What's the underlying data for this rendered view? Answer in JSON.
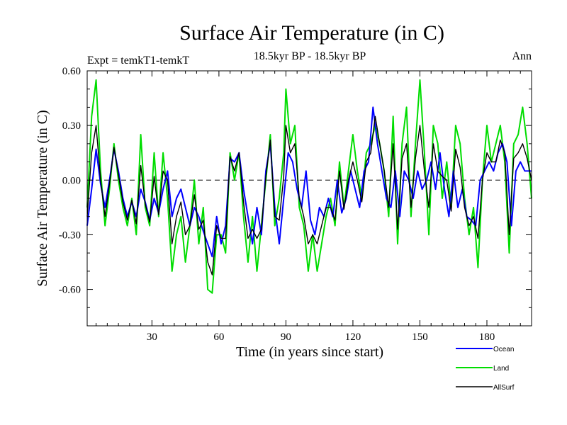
{
  "chart_data": {
    "type": "line",
    "title": "Surface Air Temperature (in C)",
    "subtitle_left": "Expt = temkT1-temkT",
    "subtitle_center": "18.5kyr BP - 18.5kyr BP",
    "subtitle_right": "Ann",
    "xlabel": "Time (in years since start)",
    "ylabel": "Surface Air Temperature (in C)",
    "xlim": [
      1,
      200
    ],
    "ylim": [
      -0.8,
      0.6
    ],
    "x_ticks": [
      30,
      60,
      90,
      120,
      150,
      180
    ],
    "x_tick_labels": [
      "30",
      "60",
      "90",
      "120",
      "150",
      "180"
    ],
    "y_ticks": [
      0.6,
      0.3,
      0.0,
      -0.3,
      -0.6
    ],
    "y_tick_labels": [
      "0.60",
      "0.30",
      "0.00",
      "-0.30",
      "-0.60"
    ],
    "zero_line": "dashed",
    "legend_position": "bottom-right",
    "series": [
      {
        "name": "Ocean",
        "color": "#0000ff",
        "points": [
          [
            1,
            -0.25
          ],
          [
            3,
            -0.05
          ],
          [
            5,
            0.17
          ],
          [
            7,
            -0.02
          ],
          [
            9,
            -0.15
          ],
          [
            11,
            0.0
          ],
          [
            13,
            0.17
          ],
          [
            15,
            0.05
          ],
          [
            17,
            -0.1
          ],
          [
            19,
            -0.2
          ],
          [
            21,
            -0.12
          ],
          [
            23,
            -0.2
          ],
          [
            25,
            -0.05
          ],
          [
            27,
            -0.12
          ],
          [
            29,
            -0.22
          ],
          [
            31,
            -0.1
          ],
          [
            33,
            -0.18
          ],
          [
            35,
            -0.05
          ],
          [
            37,
            0.05
          ],
          [
            39,
            -0.2
          ],
          [
            41,
            -0.1
          ],
          [
            43,
            -0.05
          ],
          [
            45,
            -0.15
          ],
          [
            47,
            -0.25
          ],
          [
            49,
            -0.15
          ],
          [
            51,
            -0.2
          ],
          [
            53,
            -0.28
          ],
          [
            55,
            -0.35
          ],
          [
            57,
            -0.42
          ],
          [
            59,
            -0.2
          ],
          [
            61,
            -0.35
          ],
          [
            63,
            -0.25
          ],
          [
            65,
            0.12
          ],
          [
            67,
            0.1
          ],
          [
            69,
            0.15
          ],
          [
            71,
            -0.05
          ],
          [
            73,
            -0.2
          ],
          [
            75,
            -0.35
          ],
          [
            77,
            -0.15
          ],
          [
            79,
            -0.3
          ],
          [
            81,
            0.05
          ],
          [
            83,
            0.2
          ],
          [
            85,
            -0.15
          ],
          [
            87,
            -0.35
          ],
          [
            89,
            -0.1
          ],
          [
            91,
            0.15
          ],
          [
            93,
            0.1
          ],
          [
            95,
            -0.05
          ],
          [
            97,
            -0.15
          ],
          [
            99,
            0.05
          ],
          [
            101,
            -0.22
          ],
          [
            103,
            -0.3
          ],
          [
            105,
            -0.15
          ],
          [
            107,
            -0.2
          ],
          [
            109,
            -0.1
          ],
          [
            111,
            -0.2
          ],
          [
            113,
            0.0
          ],
          [
            115,
            -0.18
          ],
          [
            117,
            -0.1
          ],
          [
            119,
            0.05
          ],
          [
            121,
            -0.05
          ],
          [
            123,
            -0.15
          ],
          [
            125,
            0.05
          ],
          [
            127,
            0.1
          ],
          [
            129,
            0.4
          ],
          [
            131,
            0.2
          ],
          [
            133,
            0.05
          ],
          [
            135,
            -0.1
          ],
          [
            137,
            -0.15
          ],
          [
            139,
            0.05
          ],
          [
            141,
            -0.2
          ],
          [
            143,
            0.05
          ],
          [
            145,
            0.0
          ],
          [
            147,
            -0.1
          ],
          [
            149,
            0.05
          ],
          [
            151,
            -0.05
          ],
          [
            153,
            0.0
          ],
          [
            155,
            0.1
          ],
          [
            157,
            -0.05
          ],
          [
            159,
            0.15
          ],
          [
            161,
            -0.05
          ],
          [
            163,
            -0.2
          ],
          [
            165,
            0.05
          ],
          [
            167,
            -0.15
          ],
          [
            169,
            -0.05
          ],
          [
            171,
            -0.2
          ],
          [
            173,
            -0.22
          ],
          [
            175,
            -0.25
          ],
          [
            177,
            0.0
          ],
          [
            179,
            0.05
          ],
          [
            181,
            0.1
          ],
          [
            183,
            0.05
          ],
          [
            185,
            0.15
          ],
          [
            187,
            0.2
          ],
          [
            189,
            0.1
          ],
          [
            191,
            -0.25
          ],
          [
            193,
            0.05
          ],
          [
            195,
            0.1
          ],
          [
            197,
            0.05
          ],
          [
            200,
            0.05
          ]
        ]
      },
      {
        "name": "Land",
        "color": "#00dd00",
        "points": [
          [
            1,
            -0.15
          ],
          [
            3,
            0.35
          ],
          [
            5,
            0.55
          ],
          [
            7,
            0.05
          ],
          [
            9,
            -0.25
          ],
          [
            11,
            -0.05
          ],
          [
            13,
            0.2
          ],
          [
            15,
            0.0
          ],
          [
            17,
            -0.15
          ],
          [
            19,
            -0.25
          ],
          [
            21,
            -0.1
          ],
          [
            23,
            -0.3
          ],
          [
            25,
            0.25
          ],
          [
            27,
            -0.15
          ],
          [
            29,
            -0.25
          ],
          [
            31,
            0.15
          ],
          [
            33,
            -0.2
          ],
          [
            35,
            0.15
          ],
          [
            37,
            -0.1
          ],
          [
            39,
            -0.5
          ],
          [
            41,
            -0.3
          ],
          [
            43,
            -0.2
          ],
          [
            45,
            -0.45
          ],
          [
            47,
            -0.25
          ],
          [
            49,
            0.0
          ],
          [
            51,
            -0.35
          ],
          [
            53,
            -0.15
          ],
          [
            55,
            -0.6
          ],
          [
            57,
            -0.62
          ],
          [
            59,
            -0.3
          ],
          [
            61,
            -0.3
          ],
          [
            63,
            -0.4
          ],
          [
            65,
            0.15
          ],
          [
            67,
            0.0
          ],
          [
            69,
            0.15
          ],
          [
            71,
            -0.2
          ],
          [
            73,
            -0.45
          ],
          [
            75,
            -0.2
          ],
          [
            77,
            -0.5
          ],
          [
            79,
            -0.25
          ],
          [
            81,
            0.0
          ],
          [
            83,
            0.25
          ],
          [
            85,
            -0.25
          ],
          [
            87,
            -0.1
          ],
          [
            89,
            0.15
          ],
          [
            90,
            0.5
          ],
          [
            92,
            0.2
          ],
          [
            94,
            0.3
          ],
          [
            96,
            -0.15
          ],
          [
            98,
            -0.25
          ],
          [
            100,
            -0.5
          ],
          [
            102,
            -0.3
          ],
          [
            104,
            -0.5
          ],
          [
            106,
            -0.35
          ],
          [
            108,
            -0.2
          ],
          [
            110,
            -0.1
          ],
          [
            112,
            -0.25
          ],
          [
            114,
            0.1
          ],
          [
            116,
            -0.15
          ],
          [
            118,
            0.05
          ],
          [
            120,
            0.25
          ],
          [
            122,
            0.05
          ],
          [
            124,
            -0.1
          ],
          [
            126,
            0.15
          ],
          [
            128,
            0.2
          ],
          [
            130,
            0.3
          ],
          [
            132,
            0.2
          ],
          [
            134,
            0.05
          ],
          [
            136,
            -0.2
          ],
          [
            138,
            0.35
          ],
          [
            140,
            -0.35
          ],
          [
            142,
            0.2
          ],
          [
            144,
            0.4
          ],
          [
            146,
            -0.2
          ],
          [
            148,
            0.2
          ],
          [
            150,
            0.55
          ],
          [
            152,
            0.15
          ],
          [
            154,
            -0.3
          ],
          [
            156,
            0.3
          ],
          [
            158,
            0.2
          ],
          [
            160,
            -0.1
          ],
          [
            162,
            0.1
          ],
          [
            164,
            -0.15
          ],
          [
            166,
            0.3
          ],
          [
            168,
            0.2
          ],
          [
            170,
            -0.1
          ],
          [
            172,
            -0.3
          ],
          [
            174,
            -0.15
          ],
          [
            176,
            -0.48
          ],
          [
            178,
            0.0
          ],
          [
            180,
            0.3
          ],
          [
            182,
            0.1
          ],
          [
            184,
            0.2
          ],
          [
            186,
            0.3
          ],
          [
            188,
            0.1
          ],
          [
            190,
            -0.4
          ],
          [
            192,
            0.2
          ],
          [
            194,
            0.25
          ],
          [
            196,
            0.4
          ],
          [
            198,
            0.2
          ],
          [
            200,
            -0.1
          ]
        ]
      },
      {
        "name": "AllSurf",
        "color": "#000000",
        "points": [
          [
            1,
            -0.2
          ],
          [
            3,
            0.15
          ],
          [
            5,
            0.3
          ],
          [
            7,
            0.0
          ],
          [
            9,
            -0.2
          ],
          [
            11,
            -0.02
          ],
          [
            13,
            0.18
          ],
          [
            15,
            0.03
          ],
          [
            17,
            -0.12
          ],
          [
            19,
            -0.22
          ],
          [
            21,
            -0.11
          ],
          [
            23,
            -0.24
          ],
          [
            25,
            0.08
          ],
          [
            27,
            -0.13
          ],
          [
            29,
            -0.23
          ],
          [
            31,
            0.02
          ],
          [
            33,
            -0.19
          ],
          [
            35,
            0.05
          ],
          [
            37,
            0.0
          ],
          [
            39,
            -0.35
          ],
          [
            41,
            -0.2
          ],
          [
            43,
            -0.12
          ],
          [
            45,
            -0.3
          ],
          [
            47,
            -0.25
          ],
          [
            49,
            -0.08
          ],
          [
            51,
            -0.27
          ],
          [
            53,
            -0.22
          ],
          [
            55,
            -0.45
          ],
          [
            57,
            -0.52
          ],
          [
            59,
            -0.25
          ],
          [
            61,
            -0.32
          ],
          [
            63,
            -0.32
          ],
          [
            65,
            0.13
          ],
          [
            67,
            0.05
          ],
          [
            69,
            0.15
          ],
          [
            71,
            -0.12
          ],
          [
            73,
            -0.32
          ],
          [
            75,
            -0.27
          ],
          [
            77,
            -0.32
          ],
          [
            79,
            -0.27
          ],
          [
            81,
            0.02
          ],
          [
            83,
            0.22
          ],
          [
            85,
            -0.2
          ],
          [
            87,
            -0.22
          ],
          [
            89,
            0.02
          ],
          [
            90,
            0.3
          ],
          [
            92,
            0.15
          ],
          [
            94,
            0.2
          ],
          [
            96,
            -0.1
          ],
          [
            98,
            -0.2
          ],
          [
            100,
            -0.35
          ],
          [
            102,
            -0.3
          ],
          [
            104,
            -0.35
          ],
          [
            106,
            -0.25
          ],
          [
            108,
            -0.15
          ],
          [
            110,
            -0.15
          ],
          [
            112,
            -0.22
          ],
          [
            114,
            0.05
          ],
          [
            116,
            -0.16
          ],
          [
            118,
            0.0
          ],
          [
            120,
            0.1
          ],
          [
            122,
            0.0
          ],
          [
            124,
            -0.12
          ],
          [
            126,
            0.1
          ],
          [
            128,
            0.15
          ],
          [
            130,
            0.35
          ],
          [
            132,
            0.2
          ],
          [
            134,
            0.05
          ],
          [
            136,
            -0.15
          ],
          [
            138,
            0.2
          ],
          [
            140,
            -0.27
          ],
          [
            142,
            0.12
          ],
          [
            144,
            0.2
          ],
          [
            146,
            -0.15
          ],
          [
            148,
            0.12
          ],
          [
            150,
            0.3
          ],
          [
            152,
            0.05
          ],
          [
            154,
            -0.15
          ],
          [
            156,
            0.2
          ],
          [
            158,
            0.05
          ],
          [
            160,
            0.02
          ],
          [
            162,
            0.0
          ],
          [
            164,
            -0.17
          ],
          [
            166,
            0.17
          ],
          [
            168,
            0.07
          ],
          [
            170,
            -0.15
          ],
          [
            172,
            -0.25
          ],
          [
            174,
            -0.2
          ],
          [
            176,
            -0.32
          ],
          [
            178,
            0.0
          ],
          [
            180,
            0.15
          ],
          [
            182,
            0.1
          ],
          [
            184,
            0.1
          ],
          [
            186,
            0.22
          ],
          [
            188,
            0.15
          ],
          [
            190,
            -0.3
          ],
          [
            192,
            0.12
          ],
          [
            194,
            0.15
          ],
          [
            196,
            0.2
          ],
          [
            198,
            0.12
          ],
          [
            200,
            0.0
          ]
        ]
      }
    ]
  }
}
